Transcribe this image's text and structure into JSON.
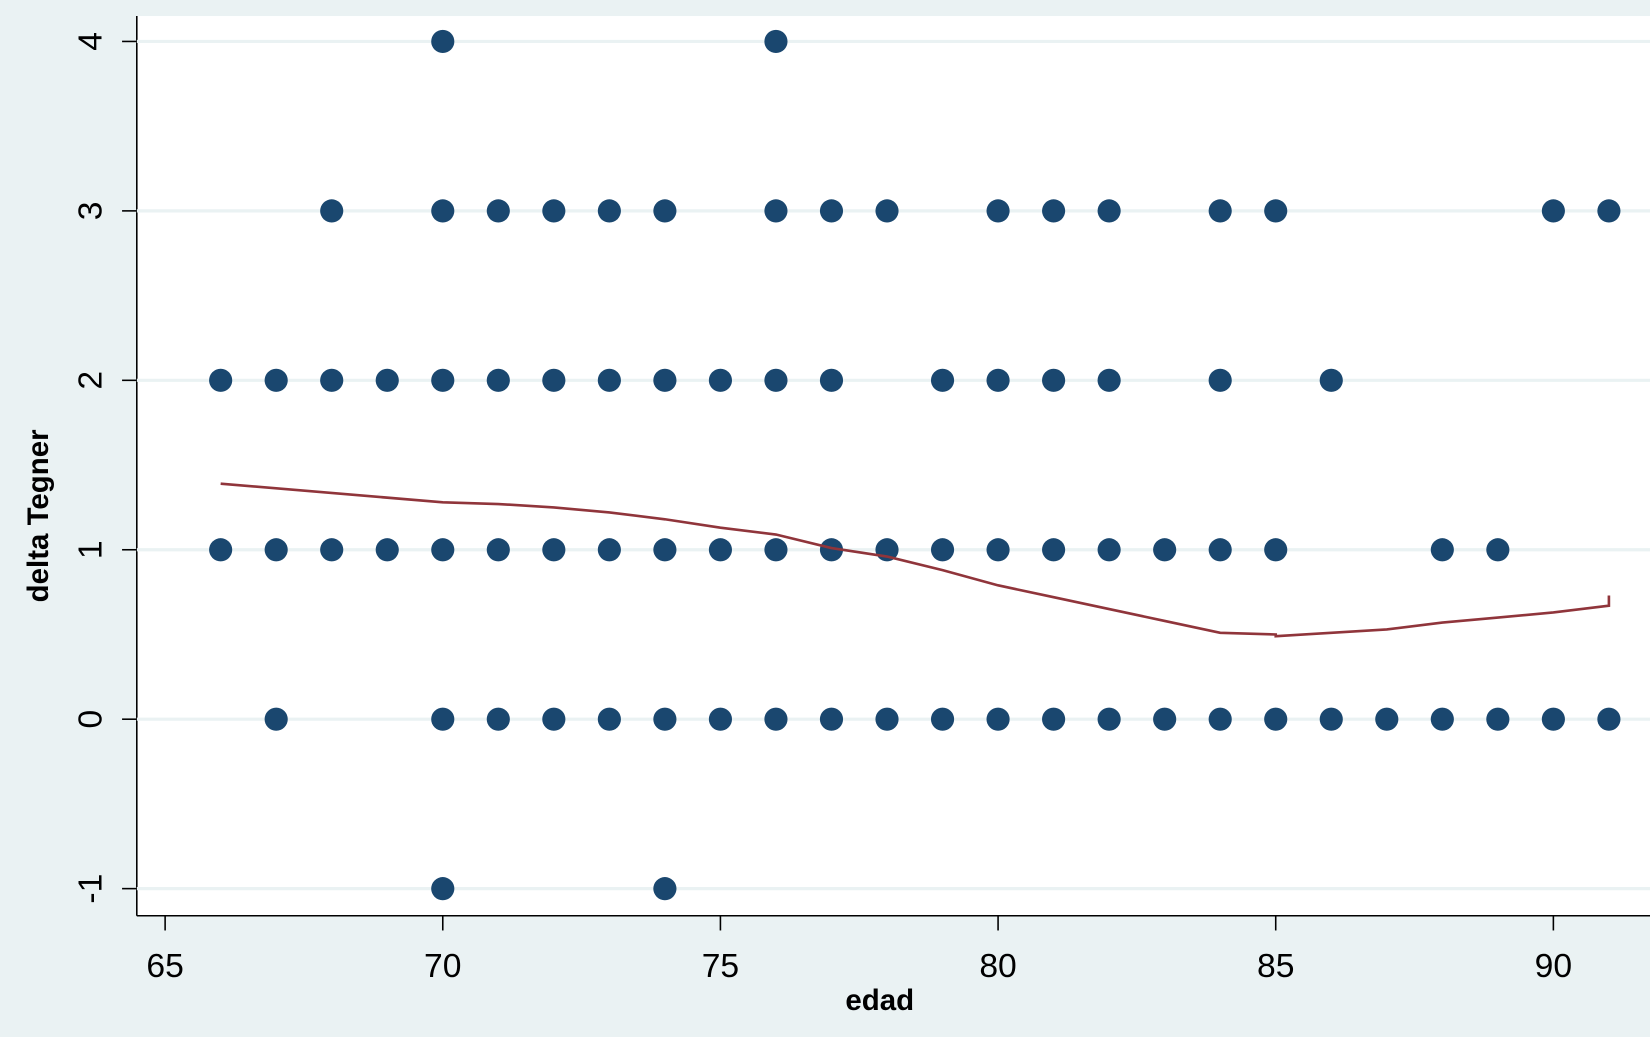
{
  "chart_data": {
    "type": "scatter",
    "xlabel": "edad",
    "ylabel": "delta Tegner",
    "xlim": [
      64.49,
      91.74
    ],
    "ylim": [
      -1.16,
      4.15
    ],
    "xticks": [
      65,
      70,
      75,
      80,
      85,
      90
    ],
    "yticks": [
      -1,
      0,
      1,
      2,
      3,
      4
    ],
    "grid": true,
    "series": [
      {
        "type": "scatter",
        "color": "#1a476f",
        "x": [
          70,
          76,
          68,
          70,
          71,
          72,
          73,
          74,
          76,
          77,
          78,
          80,
          81,
          82,
          84,
          85,
          90,
          91,
          66,
          67,
          68,
          69,
          70,
          71,
          72,
          73,
          74,
          75,
          76,
          77,
          79,
          80,
          81,
          82,
          84,
          86,
          66,
          67,
          68,
          69,
          70,
          71,
          72,
          73,
          74,
          75,
          76,
          77,
          78,
          79,
          80,
          81,
          82,
          83,
          84,
          85,
          88,
          89,
          67,
          70,
          71,
          72,
          73,
          74,
          75,
          76,
          77,
          78,
          79,
          80,
          81,
          82,
          83,
          84,
          85,
          86,
          87,
          88,
          89,
          90,
          91,
          70,
          74
        ],
        "values": [
          4,
          4,
          3,
          3,
          3,
          3,
          3,
          3,
          3,
          3,
          3,
          3,
          3,
          3,
          3,
          3,
          3,
          3,
          2,
          2,
          2,
          2,
          2,
          2,
          2,
          2,
          2,
          2,
          2,
          2,
          2,
          2,
          2,
          2,
          2,
          2,
          1,
          1,
          1,
          1,
          1,
          1,
          1,
          1,
          1,
          1,
          1,
          1,
          1,
          1,
          1,
          1,
          1,
          1,
          1,
          1,
          1,
          1,
          0,
          0,
          0,
          0,
          0,
          0,
          0,
          0,
          0,
          0,
          0,
          0,
          0,
          0,
          0,
          0,
          0,
          0,
          0,
          0,
          0,
          0,
          0,
          -1,
          -1
        ]
      },
      {
        "type": "line",
        "color": "#90353b",
        "x": [
          66,
          70,
          71,
          72,
          73,
          74,
          75,
          76,
          77,
          78,
          79,
          80,
          81,
          82,
          83,
          84,
          85,
          85,
          86,
          87,
          88,
          89,
          90,
          91,
          91
        ],
        "values": [
          1.39,
          1.28,
          1.27,
          1.25,
          1.22,
          1.18,
          1.13,
          1.09,
          1.01,
          0.96,
          0.88,
          0.79,
          0.72,
          0.65,
          0.58,
          0.51,
          0.5,
          0.49,
          0.51,
          0.53,
          0.57,
          0.6,
          0.63,
          0.67,
          0.73
        ]
      }
    ]
  }
}
